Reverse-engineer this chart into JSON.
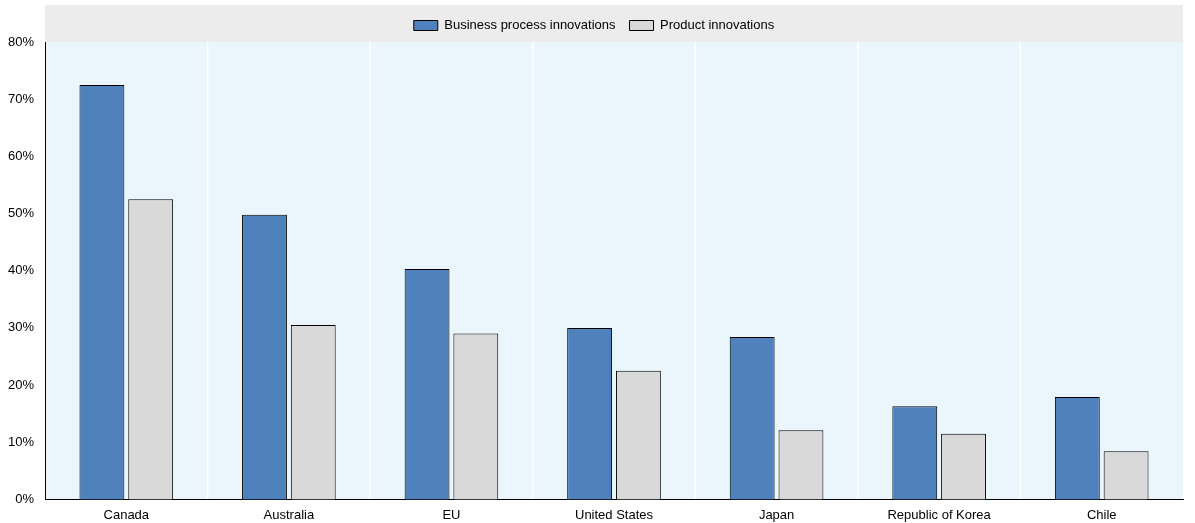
{
  "chart_data": {
    "type": "bar",
    "categories": [
      "Canada",
      "Australia",
      "EU",
      "United States",
      "Japan",
      "Republic of Korea",
      "Chile"
    ],
    "series": [
      {
        "name": "Business process innovations",
        "color": "#4f81bd",
        "values": [
          72.5,
          49.8,
          40.3,
          30.0,
          28.4,
          16.3,
          17.9
        ]
      },
      {
        "name": "Product innovations",
        "color": "#d9d9d9",
        "values": [
          52.5,
          30.5,
          29.0,
          22.5,
          12.1,
          11.5,
          8.4
        ]
      }
    ],
    "ylim": [
      0,
      80
    ],
    "yticks": [
      {
        "value": 0,
        "label": "0%"
      },
      {
        "value": 10,
        "label": "10%"
      },
      {
        "value": 20,
        "label": "20%"
      },
      {
        "value": 30,
        "label": "30%"
      },
      {
        "value": 40,
        "label": "40%"
      },
      {
        "value": 50,
        "label": "50%"
      },
      {
        "value": 60,
        "label": "60%"
      },
      {
        "value": 70,
        "label": "70%"
      },
      {
        "value": 80,
        "label": "80%"
      }
    ],
    "grid": false,
    "legend": "top"
  }
}
